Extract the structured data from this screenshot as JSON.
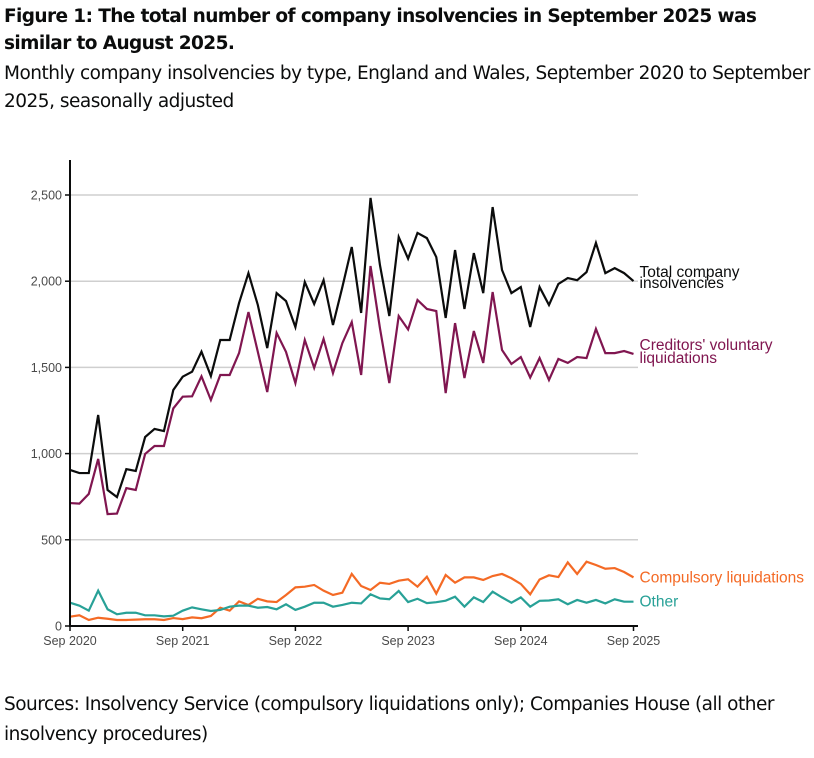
{
  "figure": {
    "title": "Figure 1: The total number of company insolvencies in September 2025 was similar to August 2025.",
    "subtitle": "Monthly company insolvencies by type, England and Wales, September 2020 to September 2025, seasonally adjusted",
    "sources": "Sources: Insolvency Service (compulsory liquidations only); Companies House (all other insolvency procedures)"
  },
  "chart_data": {
    "type": "line",
    "title": "Figure 1: The total number of company insolvencies in September 2025 was similar to August 2025.",
    "subtitle": "Monthly company insolvencies by type, England and Wales, September 2020 to September 2025, seasonally adjusted",
    "xlabel": "",
    "ylabel": "",
    "x_start": "Sep 2020",
    "x_end": "Sep 2025",
    "x_frequency": "monthly",
    "x_count": 61,
    "x_ticks": [
      {
        "index": 0,
        "label": "Sep 2020"
      },
      {
        "index": 12,
        "label": "Sep 2021"
      },
      {
        "index": 24,
        "label": "Sep 2022"
      },
      {
        "index": 36,
        "label": "Sep 2023"
      },
      {
        "index": 48,
        "label": "Sep 2024"
      },
      {
        "index": 60,
        "label": "Sep 2025"
      }
    ],
    "y_ticks": [
      {
        "value": 0,
        "label": "0"
      },
      {
        "value": 500,
        "label": "500"
      },
      {
        "value": 1000,
        "label": "1,000"
      },
      {
        "value": 1500,
        "label": "1,500"
      },
      {
        "value": 2000,
        "label": "2,000"
      },
      {
        "value": 2500,
        "label": "2,500"
      }
    ],
    "ylim": [
      0,
      2700
    ],
    "grid": "horizontal",
    "legend": "direct-labels-right",
    "series": [
      {
        "name": "Total company insolvencies",
        "label_lines": [
          "Total company",
          "insolvencies"
        ],
        "color": "#0b0c0c",
        "values": [
          905,
          887,
          887,
          1224,
          789,
          748,
          910,
          899,
          1096,
          1143,
          1131,
          1369,
          1446,
          1475,
          1591,
          1450,
          1659,
          1659,
          1873,
          2047,
          1862,
          1612,
          1931,
          1885,
          1734,
          1995,
          1868,
          2006,
          1746,
          1966,
          2198,
          1816,
          2483,
          2094,
          1798,
          2256,
          2131,
          2280,
          2250,
          2140,
          1787,
          2181,
          1839,
          2163,
          1931,
          2430,
          2065,
          1931,
          1966,
          1734,
          1966,
          1862,
          1984,
          2018,
          2006,
          2053,
          2222,
          2047,
          2076,
          2047,
          2001
        ]
      },
      {
        "name": "Creditors' voluntary liquidations",
        "label_lines": [
          "Creditors' voluntary",
          "liquidations"
        ],
        "color": "#801650",
        "values": [
          713,
          710,
          766,
          969,
          649,
          652,
          800,
          789,
          998,
          1044,
          1044,
          1262,
          1330,
          1332,
          1448,
          1311,
          1456,
          1456,
          1583,
          1821,
          1590,
          1357,
          1700,
          1590,
          1409,
          1659,
          1497,
          1665,
          1467,
          1641,
          1763,
          1456,
          2088,
          1728,
          1409,
          1798,
          1720,
          1891,
          1839,
          1827,
          1351,
          1757,
          1438,
          1711,
          1526,
          1937,
          1601,
          1520,
          1560,
          1441,
          1554,
          1427,
          1549,
          1526,
          1560,
          1554,
          1723,
          1583,
          1583,
          1595,
          1578
        ]
      },
      {
        "name": "Compulsory liquidations",
        "label_lines": [
          "Compulsory liquidations"
        ],
        "color": "#f46a25",
        "values": [
          54,
          62,
          35,
          48,
          42,
          35,
          35,
          37,
          39,
          39,
          35,
          46,
          40,
          50,
          45,
          58,
          106,
          89,
          143,
          122,
          158,
          143,
          139,
          180,
          224,
          228,
          238,
          205,
          180,
          193,
          302,
          232,
          209,
          251,
          244,
          263,
          271,
          228,
          286,
          188,
          296,
          251,
          282,
          282,
          267,
          290,
          302,
          277,
          244,
          184,
          270,
          294,
          284,
          369,
          302,
          373,
          354,
          332,
          336,
          313,
          282
        ]
      },
      {
        "name": "Other",
        "label_lines": [
          "Other"
        ],
        "color": "#28a197",
        "values": [
          135,
          118,
          89,
          205,
          97,
          68,
          77,
          77,
          62,
          62,
          56,
          60,
          89,
          108,
          97,
          87,
          93,
          112,
          118,
          118,
          106,
          110,
          97,
          126,
          93,
          112,
          135,
          135,
          112,
          122,
          135,
          131,
          184,
          160,
          155,
          203,
          139,
          158,
          133,
          138,
          147,
          170,
          112,
          166,
          139,
          199,
          166,
          135,
          166,
          112,
          146,
          148,
          155,
          126,
          151,
          135,
          151,
          131,
          155,
          141,
          141
        ]
      }
    ]
  }
}
